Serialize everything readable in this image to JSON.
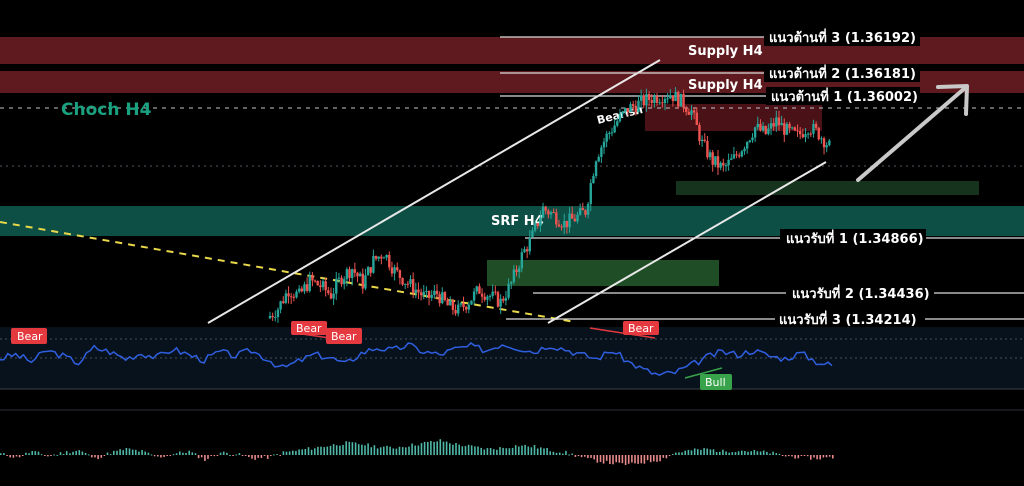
{
  "chart_data": {
    "type": "candlestick",
    "title": "",
    "annotations": {
      "choch": "Choch H4",
      "supply_1": "Supply H4",
      "supply_2": "Supply H4",
      "srf": "SRF H4",
      "bearish": "Bearish"
    },
    "resistance_levels": [
      {
        "label": "แนวต้านที่ 3 (1.36192)",
        "value": 1.36192
      },
      {
        "label": "แนวต้านที่ 2 (1.36181)",
        "value": 1.36181
      },
      {
        "label": "แนวต้านที่ 1 (1.36002)",
        "value": 1.36002
      }
    ],
    "support_levels": [
      {
        "label": "แนวรับที่ 1 (1.34866)",
        "value": 1.34866
      },
      {
        "label": "แนวรับที่ 2 (1.34436)",
        "value": 1.34436
      },
      {
        "label": "แนวรับที่ 3 (1.34214)",
        "value": 1.34214
      }
    ],
    "divergence_tags": [
      {
        "text": "Bear",
        "kind": "bear"
      },
      {
        "text": "Bear",
        "kind": "bear"
      },
      {
        "text": "Bear",
        "kind": "bear"
      },
      {
        "text": "Bear",
        "kind": "bear"
      },
      {
        "text": "Bull",
        "kind": "bull"
      }
    ],
    "price_path": [
      1.3422,
      1.343,
      1.3445,
      1.344,
      1.3452,
      1.3448,
      1.3441,
      1.3455,
      1.3462,
      1.345,
      1.3468,
      1.3475,
      1.346,
      1.3452,
      1.3445,
      1.3438,
      1.3442,
      1.3432,
      1.3428,
      1.3436,
      1.3445,
      1.344,
      1.3435,
      1.345,
      1.3472,
      1.3488,
      1.351,
      1.3505,
      1.3498,
      1.3502,
      1.3508,
      1.3552,
      1.3568,
      1.358,
      1.359,
      1.3594,
      1.3598,
      1.36,
      1.3602,
      1.3596,
      1.3588,
      1.3562,
      1.3548,
      1.3542,
      1.355,
      1.3562,
      1.3575,
      1.357,
      1.358,
      1.3572,
      1.3568,
      1.3576,
      1.357,
      1.356
    ],
    "rsi_path": [
      52,
      55,
      50,
      58,
      54,
      49,
      60,
      57,
      52,
      56,
      53,
      59,
      55,
      51,
      57,
      54,
      58,
      52,
      45,
      50,
      55,
      53,
      48,
      56,
      60,
      58,
      62,
      57,
      55,
      59,
      61,
      58,
      63,
      60,
      57,
      62,
      59,
      55,
      52,
      58,
      50,
      44,
      40,
      42,
      47,
      53,
      57,
      55,
      58,
      54,
      52,
      56,
      50,
      47
    ],
    "macd_hist": [
      0.1,
      -0.2,
      0.3,
      -0.1,
      0.2,
      0.4,
      -0.3,
      0.2,
      0.5,
      0.3,
      -0.2,
      0.1,
      0.3,
      -0.4,
      0.2,
      0.1,
      -0.3,
      -0.2,
      0.2,
      0.4,
      0.6,
      0.8,
      1.0,
      0.9,
      0.7,
      0.6,
      0.8,
      1.0,
      1.2,
      0.9,
      0.7,
      0.5,
      0.6,
      0.8,
      0.7,
      0.4,
      0.2,
      -0.2,
      -0.5,
      -0.7,
      -0.8,
      -0.6,
      -0.4,
      0.2,
      0.4,
      0.5,
      0.3,
      0.4,
      0.3,
      0.2,
      -0.1,
      -0.2,
      -0.3,
      -0.2
    ],
    "colors": {
      "supply": "#5e1a1e",
      "srf": "#0d4f45",
      "demand": "#1e4d26",
      "bull_candle": "#26a69a",
      "bear_candle": "#ef5350",
      "rsi_line": "#2f5fe0",
      "bear_tag": "#e53940",
      "bull_tag": "#38a34a",
      "trend_dashed": "#e8d84a"
    }
  }
}
